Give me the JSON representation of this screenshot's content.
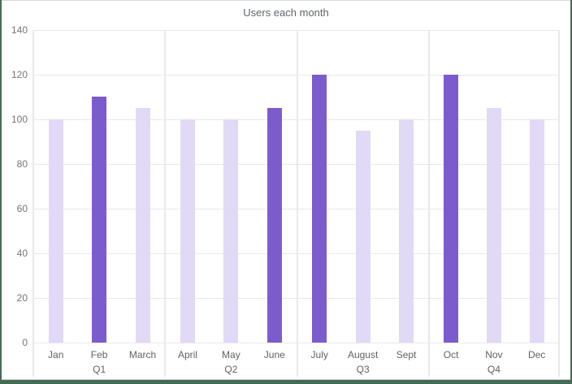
{
  "chart_data": {
    "type": "bar",
    "title": "Users each month",
    "categories": [
      "Jan",
      "Feb",
      "March",
      "April",
      "May",
      "June",
      "July",
      "August",
      "Sept",
      "Oct",
      "Nov",
      "Dec"
    ],
    "values": [
      100,
      110,
      105,
      100,
      100,
      105,
      120,
      95,
      100,
      120,
      105,
      100
    ],
    "highlighted_months": [
      "Feb",
      "June",
      "July",
      "Oct"
    ],
    "quarters": [
      {
        "label": "Q1",
        "categories": [
          "Jan",
          "Feb",
          "March"
        ],
        "values": [
          100,
          110,
          105
        ],
        "emphasis": [
          false,
          true,
          false
        ]
      },
      {
        "label": "Q2",
        "categories": [
          "April",
          "May",
          "June"
        ],
        "values": [
          100,
          100,
          105
        ],
        "emphasis": [
          false,
          false,
          true
        ]
      },
      {
        "label": "Q3",
        "categories": [
          "July",
          "August",
          "Sept"
        ],
        "values": [
          120,
          95,
          100
        ],
        "emphasis": [
          true,
          false,
          false
        ]
      },
      {
        "label": "Q4",
        "categories": [
          "Oct",
          "Nov",
          "Dec"
        ],
        "values": [
          120,
          105,
          100
        ],
        "emphasis": [
          true,
          false,
          false
        ]
      }
    ],
    "y_ticks": [
      0,
      20,
      40,
      60,
      80,
      100,
      120,
      140
    ],
    "ylim": [
      0,
      140
    ],
    "xlabel": "",
    "ylabel": "",
    "layout": {
      "grid": true,
      "legend": "none",
      "quarter_separators": true
    },
    "colors": {
      "bar_default": "#e1d9f6",
      "bar_emphasis": "#7c5ccd",
      "gridline": "#e8e8e8",
      "axis_text": "#757575",
      "title_text": "#5f6368",
      "frame_green": "#446c55"
    }
  }
}
